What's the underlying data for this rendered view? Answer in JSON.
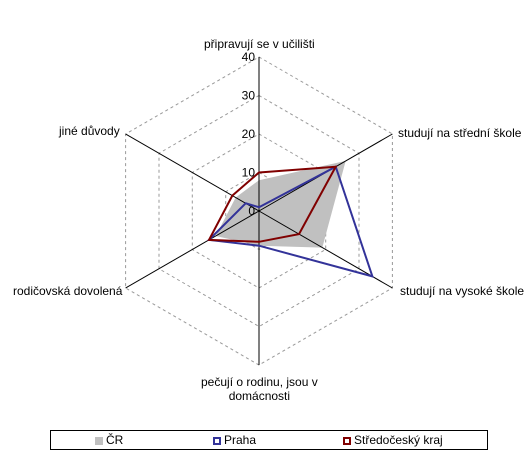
{
  "chart_data": {
    "type": "radar",
    "categories": [
      "připravují se v učilišti",
      "studují na střední škole",
      "studují na vysoké škole",
      "pečují o rodinu, jsou v domácnosti",
      "rodičovská dovolená",
      "jiné důvody"
    ],
    "category_labels": [
      [
        "připravují se v učilišti"
      ],
      [
        "studují na střední škole"
      ],
      [
        "studují na vysoké škole"
      ],
      [
        "pečují o rodinu, jsou v",
        "domácnosti"
      ],
      [
        "rodičovská dovolená"
      ],
      [
        "jiné důvody"
      ]
    ],
    "r_range": [
      0,
      40
    ],
    "r_ticks": [
      0,
      10,
      20,
      30,
      40
    ],
    "grid": true,
    "legend_position": "bottom",
    "series": [
      {
        "name": "ČR",
        "values": [
          8,
          26,
          19,
          9,
          13,
          7
        ],
        "color": "#c0c0c0",
        "fill": true
      },
      {
        "name": "Praha",
        "values": [
          1,
          23,
          34,
          9,
          15,
          4
        ],
        "color": "#333399",
        "fill": false
      },
      {
        "name": "Středočeský kraj",
        "values": [
          10,
          23,
          12,
          8,
          15,
          8
        ],
        "color": "#800000",
        "fill": false
      }
    ]
  }
}
